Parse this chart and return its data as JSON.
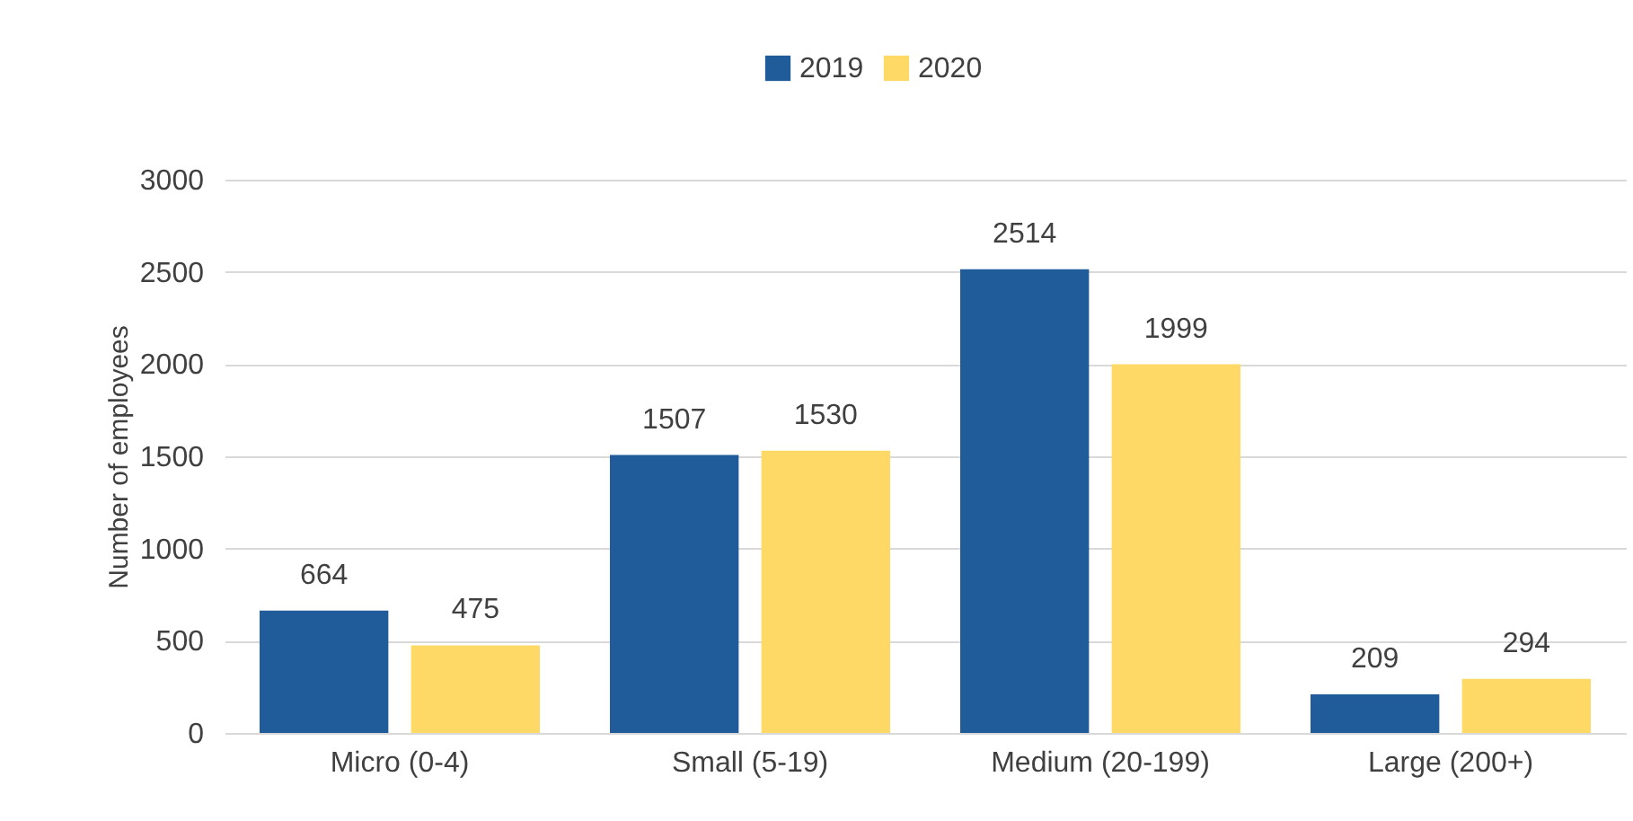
{
  "chart_data": {
    "type": "bar",
    "ylabel": "Number of employees",
    "categories": [
      "Micro (0-4)",
      "Small (5-19)",
      "Medium (20-199)",
      "Large (200+)"
    ],
    "series": [
      {
        "name": "2019",
        "color": "#1f5c99",
        "values": [
          664,
          1507,
          2514,
          209
        ]
      },
      {
        "name": "2020",
        "color": "#ffd966",
        "values": [
          475,
          1530,
          1999,
          294
        ]
      }
    ],
    "ylim": [
      0,
      3000
    ],
    "yticks": [
      0,
      500,
      1000,
      1500,
      2000,
      2500,
      3000
    ],
    "grid": "y",
    "legend": "top",
    "data_labels": true
  }
}
